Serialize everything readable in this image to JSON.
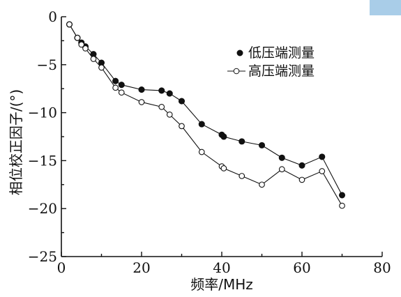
{
  "colors": {
    "axis": "#111111",
    "marker_filled": "#111111",
    "marker_open_fill": "#ffffff",
    "corner_tab": "#a9cde8"
  },
  "chart_data": {
    "type": "line",
    "xlabel": "频率/MHz",
    "ylabel": "相位校正因子/(°)",
    "xlim": [
      0,
      80
    ],
    "ylim": [
      -25,
      0
    ],
    "x_ticks": [
      0,
      20,
      40,
      60,
      80
    ],
    "y_ticks": [
      0,
      -5,
      -10,
      -15,
      -20,
      -25
    ],
    "x_tick_labels": [
      "0",
      "20",
      "40",
      "60",
      "80"
    ],
    "y_tick_labels": [
      "0",
      "−5",
      "−10",
      "−15",
      "−20",
      "−25"
    ],
    "grid": false,
    "legend_position": "upper-right",
    "series": [
      {
        "name": "低压端测量",
        "marker": "filled-circle",
        "line": false,
        "x": [
          2,
          4,
          5,
          6,
          8,
          10,
          13.5,
          15,
          20,
          25,
          27,
          30,
          35,
          40,
          40.5,
          45,
          50,
          55,
          60,
          65,
          70
        ],
        "y": [
          -0.8,
          -2.2,
          -2.7,
          -3.1,
          -3.9,
          -4.8,
          -6.7,
          -7.1,
          -7.6,
          -7.7,
          -8.0,
          -8.8,
          -11.2,
          -12.3,
          -12.5,
          -13.0,
          -13.4,
          -14.7,
          -15.5,
          -14.6,
          -18.6
        ]
      },
      {
        "name": "高压端测量",
        "marker": "open-circle",
        "line": true,
        "x": [
          2,
          4,
          5,
          6,
          8,
          10,
          13.5,
          15,
          20,
          25,
          27,
          30,
          35,
          40,
          40.5,
          45,
          50,
          55,
          60,
          65,
          70
        ],
        "y": [
          -0.8,
          -2.2,
          -2.9,
          -3.3,
          -4.4,
          -5.3,
          -7.4,
          -7.9,
          -8.9,
          -9.4,
          -10.2,
          -11.4,
          -14.1,
          -15.6,
          -15.8,
          -16.6,
          -17.5,
          -15.9,
          -17.0,
          -16.1,
          -19.7
        ]
      }
    ]
  }
}
